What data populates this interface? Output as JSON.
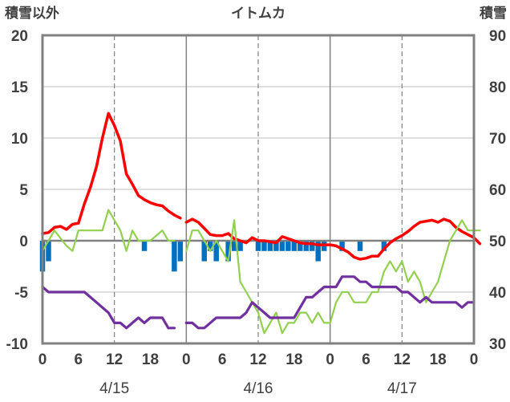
{
  "chart_data": {
    "type": "line",
    "title": "イトムカ",
    "ylabel_left": "積雪以外",
    "ylabel_right": "積雪",
    "ylim_left": [
      -10,
      20
    ],
    "ylim_right": [
      30,
      90
    ],
    "yticks_left": [
      "20",
      "15",
      "10",
      "5",
      "0",
      "-5",
      "-10"
    ],
    "yticks_right": [
      "90",
      "80",
      "70",
      "60",
      "50",
      "40",
      "30"
    ],
    "xlim_hours": [
      0,
      72
    ],
    "xticks": [
      "0",
      "6",
      "12",
      "18",
      "0",
      "6",
      "12",
      "18",
      "0",
      "6",
      "12",
      "18",
      "0"
    ],
    "dates": [
      "4/15",
      "4/16",
      "4/17"
    ],
    "grid": "dashed verticals every 12h, solid verticals at day boundaries",
    "series": [
      {
        "key": "red",
        "color": "#ff0000",
        "axis": "left",
        "segments": [
          [
            [
              0,
              0.7
            ],
            [
              1,
              0.8
            ],
            [
              2,
              1.3
            ],
            [
              3,
              1.4
            ],
            [
              4,
              1.1
            ],
            [
              5,
              1.6
            ],
            [
              6,
              1.7
            ],
            [
              7,
              3.6
            ],
            [
              8,
              5.2
            ],
            [
              9,
              7.2
            ],
            [
              10,
              10.0
            ],
            [
              11,
              12.4
            ],
            [
              12,
              11.2
            ],
            [
              13,
              9.7
            ],
            [
              14,
              6.5
            ],
            [
              15,
              5.5
            ],
            [
              16,
              4.4
            ],
            [
              17,
              4.0
            ],
            [
              18,
              3.7
            ],
            [
              19,
              3.5
            ],
            [
              20,
              3.4
            ],
            [
              21,
              2.9
            ],
            [
              22,
              2.5
            ],
            [
              23,
              2.2
            ]
          ],
          [
            [
              24,
              1.8
            ],
            [
              25,
              2.1
            ],
            [
              26,
              1.8
            ],
            [
              27,
              1.2
            ],
            [
              28,
              0.6
            ],
            [
              29,
              0.5
            ],
            [
              30,
              0.5
            ],
            [
              31,
              0.7
            ],
            [
              32,
              0.2
            ],
            [
              33,
              0.0
            ],
            [
              34,
              -0.2
            ],
            [
              35,
              0.3
            ],
            [
              36,
              0.0
            ],
            [
              37,
              0.0
            ],
            [
              38,
              -0.1
            ],
            [
              39,
              -0.2
            ],
            [
              40,
              0.4
            ],
            [
              41,
              0.2
            ],
            [
              42,
              0.0
            ],
            [
              43,
              -0.2
            ],
            [
              44,
              -0.3
            ],
            [
              45,
              -0.3
            ],
            [
              46,
              -0.4
            ],
            [
              47,
              -0.4
            ],
            [
              48,
              -0.4
            ],
            [
              49,
              -0.5
            ],
            [
              50,
              -0.8
            ],
            [
              51,
              -1.1
            ],
            [
              52,
              -1.6
            ],
            [
              53,
              -1.8
            ],
            [
              54,
              -1.7
            ],
            [
              55,
              -1.5
            ],
            [
              56,
              -1.5
            ],
            [
              57,
              -0.8
            ],
            [
              58,
              -0.2
            ],
            [
              59,
              0.2
            ],
            [
              60,
              0.5
            ],
            [
              61,
              0.9
            ],
            [
              62,
              1.4
            ],
            [
              63,
              1.8
            ],
            [
              64,
              1.9
            ],
            [
              65,
              2.0
            ],
            [
              66,
              1.8
            ],
            [
              67,
              2.1
            ],
            [
              68,
              1.9
            ],
            [
              69,
              1.3
            ],
            [
              70,
              0.9
            ],
            [
              71,
              0.6
            ],
            [
              72,
              0.3
            ],
            [
              73,
              -0.3
            ]
          ]
        ]
      },
      {
        "key": "green",
        "color": "#92d050",
        "axis": "left",
        "segments": [
          [
            [
              0,
              -1.0
            ],
            [
              2,
              1.0
            ],
            [
              4,
              -0.5
            ],
            [
              5,
              -1.0
            ],
            [
              6,
              1.0
            ],
            [
              10,
              1.0
            ],
            [
              11,
              3.0
            ],
            [
              13,
              1.0
            ],
            [
              14,
              -1.0
            ],
            [
              15,
              1.0
            ],
            [
              16,
              0.0
            ],
            [
              18,
              0.0
            ],
            [
              20,
              1.0
            ],
            [
              21,
              0.0
            ],
            [
              22,
              0.0
            ]
          ],
          [
            [
              24,
              -1.0
            ],
            [
              25,
              1.0
            ],
            [
              26,
              1.0
            ],
            [
              27,
              0.0
            ],
            [
              28,
              -1.0
            ],
            [
              29,
              0.0
            ],
            [
              30,
              -1.0
            ],
            [
              31,
              -2.0
            ],
            [
              32,
              2.0
            ],
            [
              33,
              -4.0
            ],
            [
              34,
              -5.0
            ],
            [
              35,
              -6.0
            ],
            [
              36,
              -7.0
            ],
            [
              37,
              -9.0
            ],
            [
              38,
              -8.0
            ],
            [
              39,
              -7.0
            ],
            [
              40,
              -9.0
            ],
            [
              41,
              -8.0
            ],
            [
              42,
              -8.0
            ],
            [
              43,
              -7.0
            ],
            [
              44,
              -7.0
            ],
            [
              45,
              -8.0
            ],
            [
              46,
              -7.0
            ],
            [
              47,
              -8.0
            ],
            [
              48,
              -8.0
            ],
            [
              49,
              -6.0
            ],
            [
              50,
              -5.0
            ],
            [
              51,
              -5.0
            ],
            [
              52,
              -6.0
            ],
            [
              53,
              -6.0
            ],
            [
              54,
              -6.0
            ],
            [
              55,
              -5.0
            ],
            [
              56,
              -5.0
            ],
            [
              57,
              -3.0
            ],
            [
              58,
              -2.0
            ],
            [
              59,
              -3.0
            ],
            [
              60,
              -2.0
            ],
            [
              61,
              -4.0
            ],
            [
              62,
              -3.0
            ],
            [
              63,
              -4.0
            ],
            [
              64,
              -6.0
            ],
            [
              65,
              -5.0
            ],
            [
              66,
              -4.0
            ],
            [
              67,
              -2.0
            ],
            [
              68,
              0.0
            ],
            [
              69,
              1.0
            ],
            [
              70,
              2.0
            ],
            [
              71,
              1.0
            ],
            [
              72,
              1.0
            ],
            [
              73,
              1.0
            ]
          ]
        ]
      },
      {
        "key": "purple",
        "color": "#7030a0",
        "axis": "right",
        "segments": [
          [
            [
              0,
              41
            ],
            [
              1,
              40
            ],
            [
              7,
              40
            ],
            [
              8,
              39
            ],
            [
              9,
              38
            ],
            [
              10,
              37
            ],
            [
              11,
              36
            ],
            [
              12,
              34
            ],
            [
              13,
              34
            ],
            [
              14,
              33
            ],
            [
              15,
              34
            ],
            [
              16,
              35
            ],
            [
              17,
              34
            ],
            [
              18,
              35
            ],
            [
              19,
              35
            ],
            [
              20,
              35
            ],
            [
              21,
              33
            ],
            [
              22,
              33
            ]
          ],
          [
            [
              24,
              34
            ],
            [
              25,
              34
            ],
            [
              26,
              33
            ],
            [
              27,
              33
            ],
            [
              28,
              34
            ],
            [
              29,
              35
            ],
            [
              30,
              35
            ],
            [
              31,
              35
            ],
            [
              32,
              35
            ],
            [
              33,
              35
            ],
            [
              34,
              36
            ],
            [
              35,
              38
            ],
            [
              36,
              37
            ],
            [
              37,
              36
            ],
            [
              38,
              35
            ],
            [
              39,
              35
            ],
            [
              40,
              35
            ],
            [
              41,
              35
            ],
            [
              42,
              35
            ],
            [
              43,
              37
            ],
            [
              44,
              39
            ],
            [
              45,
              39
            ],
            [
              46,
              40
            ],
            [
              47,
              41
            ],
            [
              48,
              41
            ],
            [
              49,
              41
            ],
            [
              50,
              43
            ],
            [
              51,
              43
            ],
            [
              52,
              43
            ],
            [
              53,
              42
            ],
            [
              54,
              42
            ],
            [
              55,
              41
            ],
            [
              56,
              41
            ],
            [
              57,
              41
            ],
            [
              58,
              41
            ],
            [
              59,
              41
            ],
            [
              60,
              40
            ],
            [
              61,
              40
            ],
            [
              62,
              39
            ],
            [
              63,
              38
            ],
            [
              64,
              39
            ],
            [
              65,
              38
            ],
            [
              66,
              38
            ],
            [
              67,
              38
            ],
            [
              68,
              38
            ],
            [
              69,
              38
            ],
            [
              70,
              37
            ],
            [
              71,
              38
            ],
            [
              72,
              38
            ]
          ]
        ]
      }
    ],
    "bars": {
      "color": "#0070c0",
      "axis": "left",
      "values": [
        [
          0,
          -3
        ],
        [
          1,
          -2
        ],
        [
          17,
          -1
        ],
        [
          22,
          -3
        ],
        [
          23,
          -2
        ],
        [
          27,
          -2
        ],
        [
          28,
          -1
        ],
        [
          29,
          -2
        ],
        [
          31,
          -2
        ],
        [
          32,
          -1
        ],
        [
          33,
          -1
        ],
        [
          36,
          -1
        ],
        [
          37,
          -1
        ],
        [
          38,
          -1
        ],
        [
          39,
          -1
        ],
        [
          40,
          -1
        ],
        [
          41,
          -1
        ],
        [
          42,
          -1
        ],
        [
          43,
          -1
        ],
        [
          44,
          -1
        ],
        [
          45,
          -1
        ],
        [
          46,
          -2
        ],
        [
          47,
          -1
        ],
        [
          50,
          -1
        ],
        [
          53,
          -1
        ],
        [
          57,
          -1
        ]
      ]
    }
  }
}
